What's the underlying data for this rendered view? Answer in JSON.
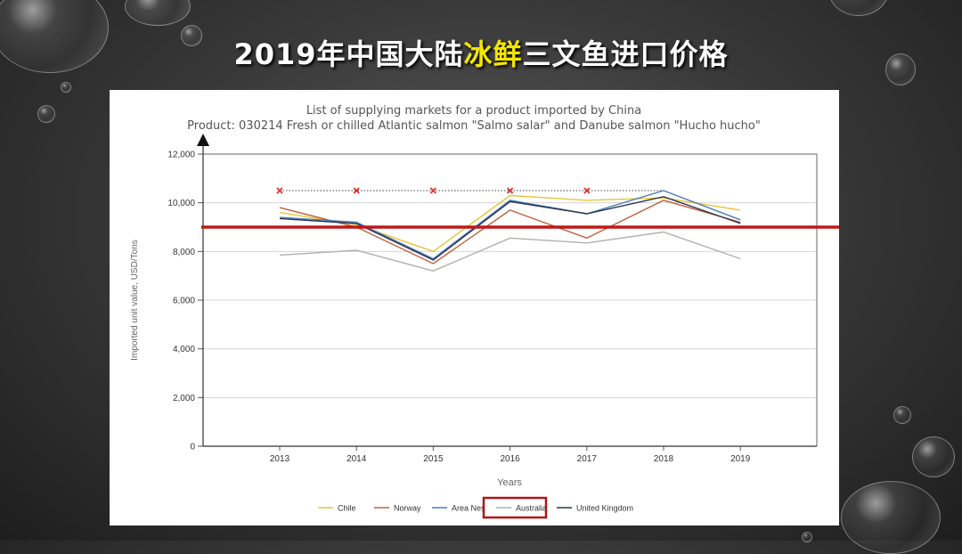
{
  "slide": {
    "title_pre": "2019年中国大陆",
    "title_highlight": "冰鲜",
    "title_post": "三文鱼进口价格"
  },
  "chart_data": {
    "type": "line",
    "title": "List of supplying markets for a product imported by China",
    "subtitle": "Product: 030214 Fresh or chilled Atlantic salmon \"Salmo salar\" and Danube salmon \"Hucho hucho\"",
    "xlabel": "Years",
    "ylabel": "Imported unit value, USD/Tons",
    "categories": [
      "2013",
      "2014",
      "2015",
      "2016",
      "2017",
      "2018",
      "2019"
    ],
    "ylim": [
      0,
      12000
    ],
    "yticks": [
      "0",
      "2,000",
      "4,000",
      "6,000",
      "8,000",
      "10,000",
      "12,000"
    ],
    "ytick_values": [
      0,
      2000,
      4000,
      6000,
      8000,
      10000,
      12000
    ],
    "grid": true,
    "legend_position": "bottom",
    "series": [
      {
        "name": "Chile",
        "color": "#e8c43a",
        "values": [
          9600,
          9100,
          8000,
          10300,
          10100,
          10200,
          9700
        ]
      },
      {
        "name": "Norway",
        "color": "#c0603a",
        "values": [
          9800,
          9000,
          7500,
          9700,
          8550,
          10100,
          9200
        ]
      },
      {
        "name": "Area Nes",
        "color": "#4a7fb5",
        "values": [
          9400,
          9200,
          7700,
          10100,
          9550,
          10500,
          9300
        ]
      },
      {
        "name": "Australia",
        "color": "#b0b0b0",
        "values": [
          7850,
          8050,
          7200,
          8550,
          8350,
          8800,
          7700
        ]
      },
      {
        "name": "United Kingdom",
        "color": "#2c3550",
        "values": [
          9350,
          9150,
          7650,
          10050,
          9550,
          10250,
          9150
        ]
      }
    ],
    "dotted_reference": {
      "value": 10500,
      "marker_years": [
        "2013",
        "2014",
        "2015",
        "2016",
        "2017"
      ],
      "marker_color": "#e03030"
    },
    "reference_line": {
      "value": 9000,
      "color": "#c01818"
    },
    "highlighted_legend": "Australia"
  }
}
